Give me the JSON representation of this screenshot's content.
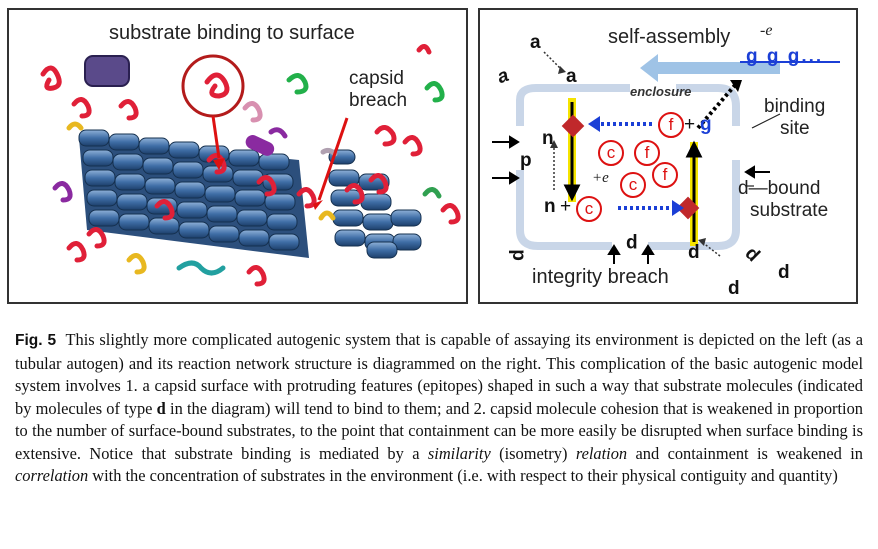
{
  "left_panel": {
    "title": "substrate binding to surface",
    "breach_label_line1": "capsid",
    "breach_label_line2": "breach"
  },
  "right_panel": {
    "self_assembly": "self-assembly",
    "minus_e": "-e",
    "g_chain": "g g g...",
    "enclosure": "enclosure",
    "binding_site_line1": "binding",
    "binding_site_line2": "site",
    "d_bound_line1": "d—bound",
    "d_bound_line2": "substrate",
    "integrity_breach": "integrity breach",
    "plus_e": "+e",
    "letters": {
      "a_top": "a",
      "a_inner": "a",
      "a_rot": "a",
      "n_upper": "n",
      "n_lower": "n",
      "plus_c": "+",
      "p_left": "p",
      "p_bottom": "p",
      "p_rot": "p",
      "plus_g": "+",
      "g_inner": "g",
      "d_inner": "d",
      "d_rot": "d",
      "d_outer": "d",
      "d_bottom": "d"
    },
    "circled": {
      "f1": "f",
      "c1": "c",
      "f2": "f",
      "c2": "c",
      "f3": "f",
      "c3": "c"
    },
    "colors": {
      "enclosure_fill": "#c9d6e8",
      "arrow_blue": "#1b3fd6",
      "circle_red": "#dd1111",
      "node_red": "#c0282b",
      "highlight": "#f5e400"
    }
  },
  "caption": {
    "fig_label": "Fig. 5",
    "text_1": "This slightly more complicated autogenic system that is capable of assaying its environment is depicted on the left (as a tubular autogen) and its reaction network structure is diagrammed on the right. This complication of the basic autogenic model system involves 1. a capsid surface with protruding features (epitopes) shaped in such a way that substrate molecules (indicated by molecules of type ",
    "bold_d": "d",
    "text_2": " in the diagram) will tend to bind to them; and 2. capsid molecule cohesion that is weakened in proportion to the number of surface-bound substrates, to the point that containment can be more easily be disrupted when surface binding is extensive. Notice that substrate binding is mediated by a ",
    "italic_similarity": "similarity",
    "text_3": " (isometry) ",
    "italic_relation": "relation",
    "text_4": " and containment is weakened in ",
    "italic_correlation": "correlation",
    "text_5": " with the concentration of substrates in the environment (i.e. with respect to their physical contiguity and quantity)"
  }
}
